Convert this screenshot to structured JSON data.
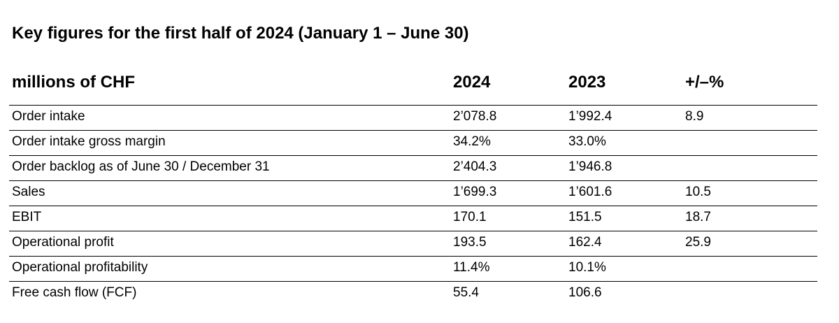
{
  "title": "Key figures for the first half of 2024 (January 1 – June 30)",
  "table": {
    "headers": [
      "millions of CHF",
      "2024",
      "2023",
      "+/–%"
    ],
    "rows": [
      [
        "Order intake",
        "2’078.8",
        "1’992.4",
        "8.9"
      ],
      [
        "Order intake gross margin",
        "34.2%",
        "33.0%",
        ""
      ],
      [
        "Order backlog as of June 30 / December 31",
        "2’404.3",
        "1’946.8",
        ""
      ],
      [
        "Sales",
        "1’699.3",
        "1’601.6",
        "10.5"
      ],
      [
        "EBIT",
        "170.1",
        "151.5",
        "18.7"
      ],
      [
        "Operational profit",
        "193.5",
        "162.4",
        "25.9"
      ],
      [
        "Operational profitability",
        "11.4%",
        "10.1%",
        ""
      ],
      [
        "Free cash flow (FCF)",
        "55.4",
        "106.6",
        ""
      ]
    ]
  }
}
